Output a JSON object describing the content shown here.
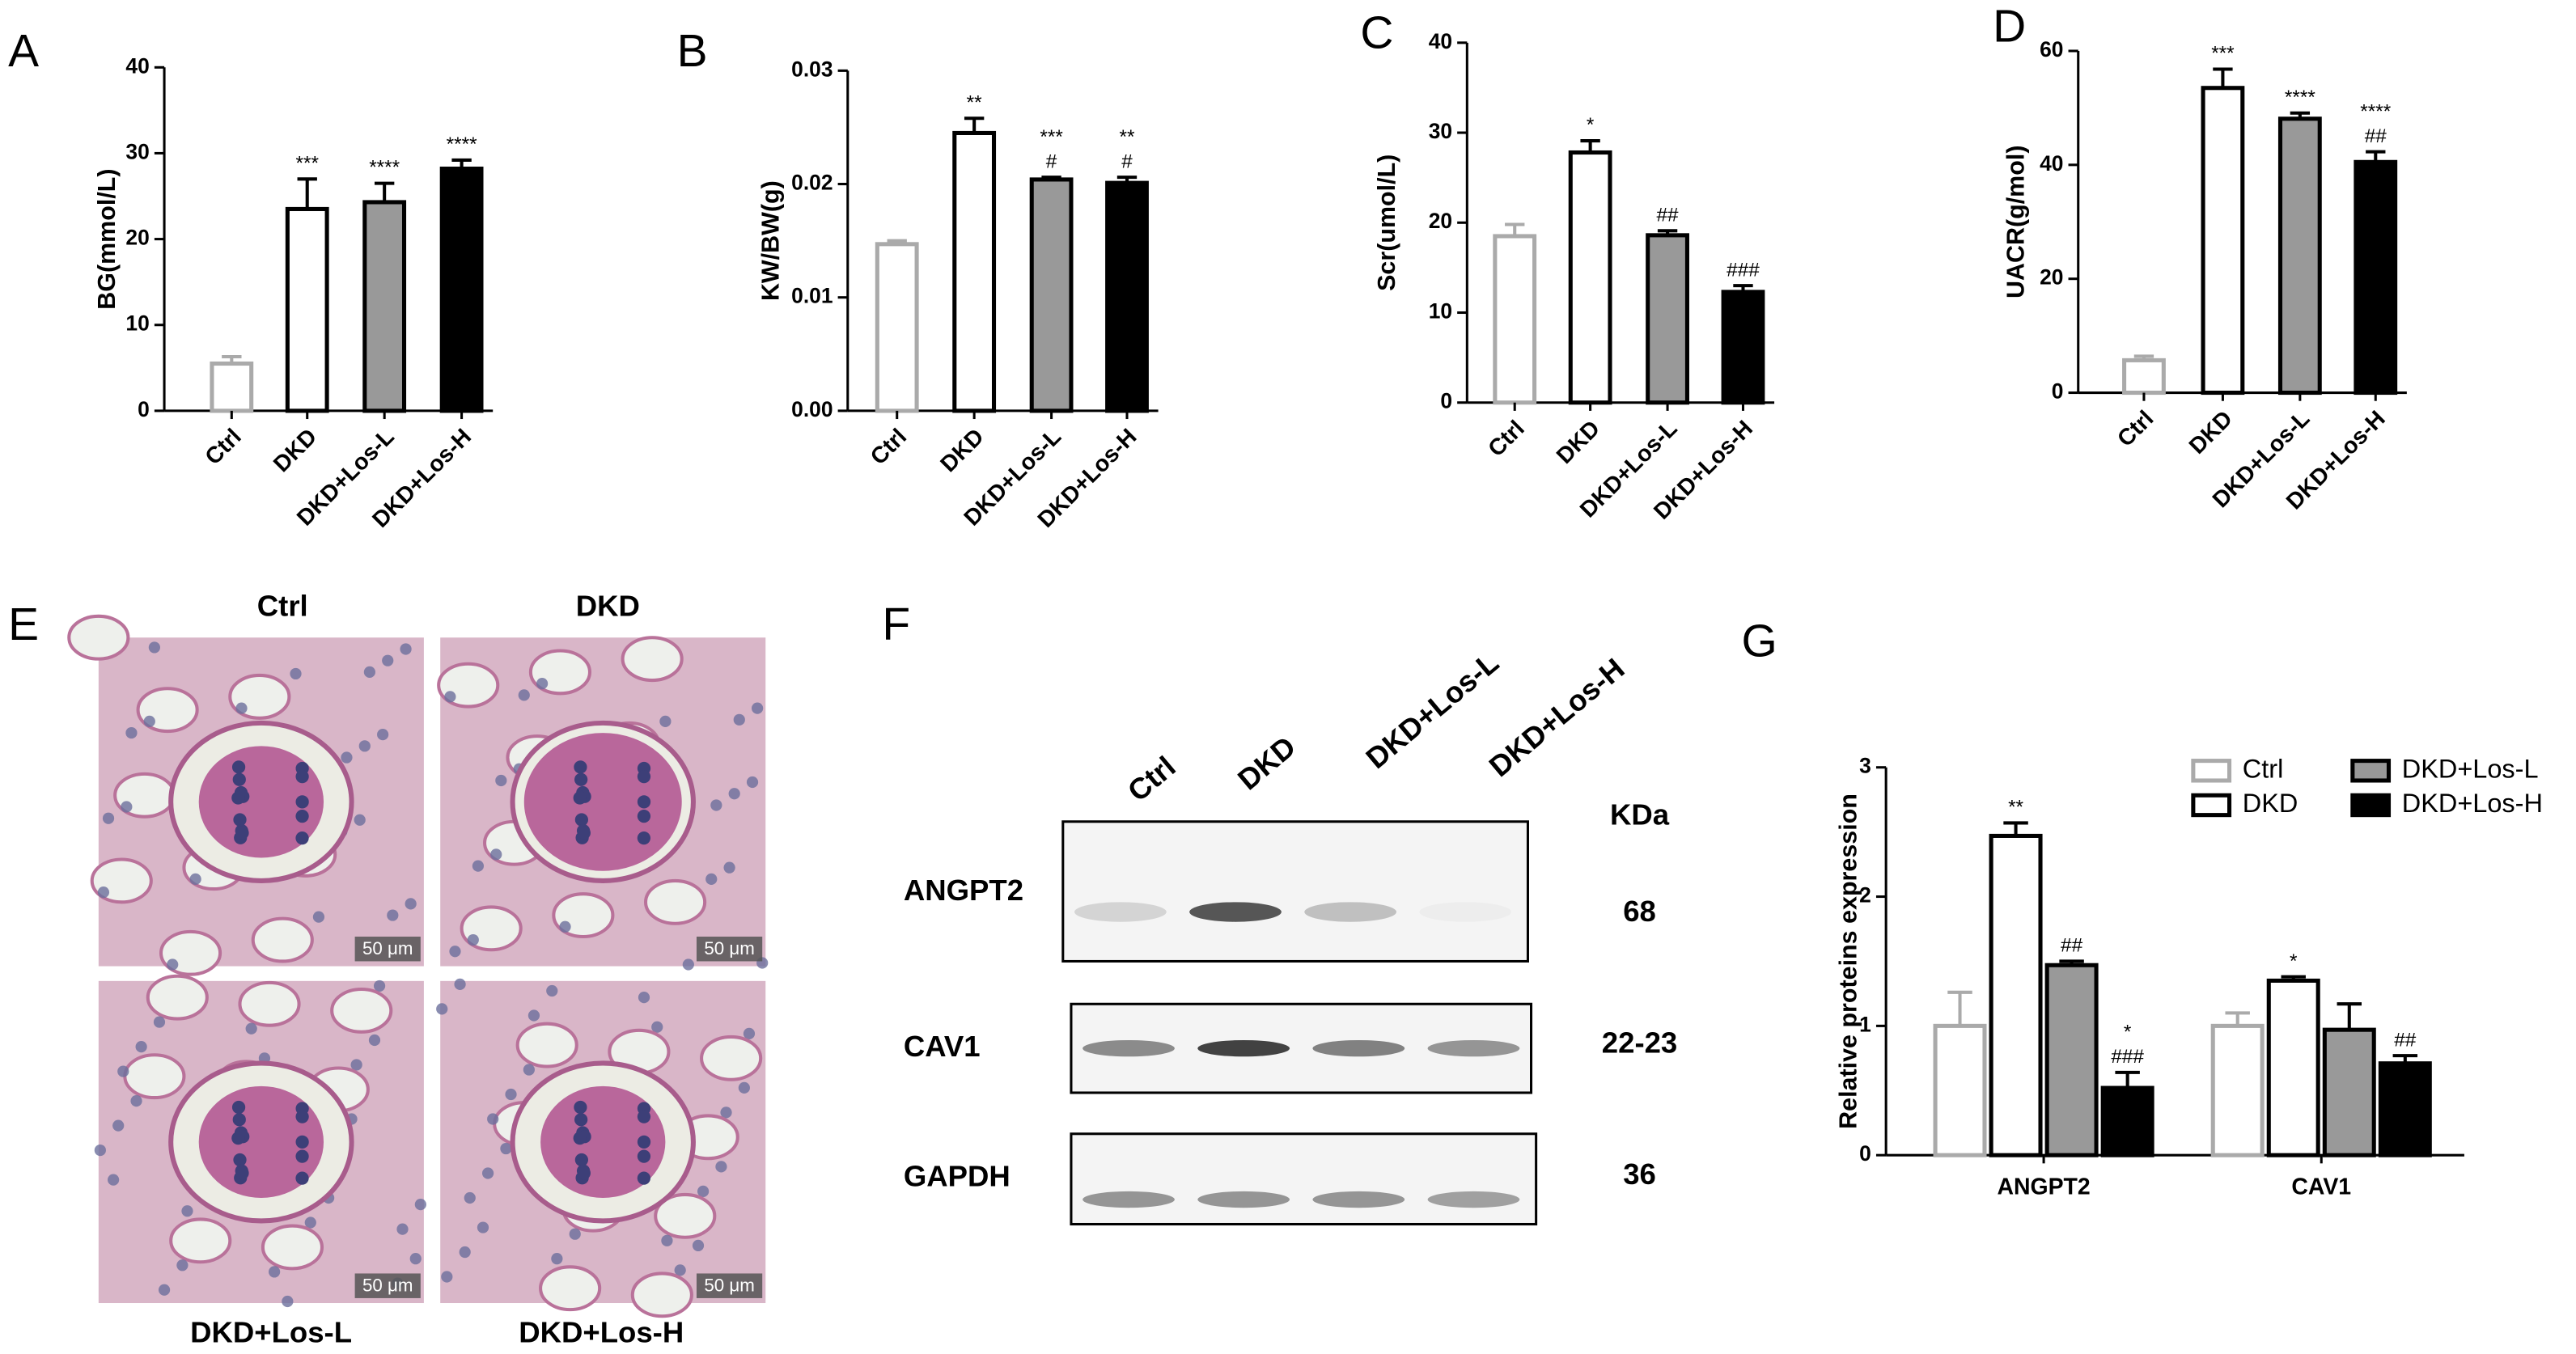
{
  "chart_data": [
    {
      "type": "bar",
      "panel_label": "A",
      "ylabel": "BG(mmol/L)",
      "categories": [
        "Ctrl",
        "DKD",
        "DKD+Los-L",
        "DKD+Los-H"
      ],
      "values": [
        5.5,
        23.5,
        24.3,
        28.2
      ],
      "errors": [
        0.8,
        3.5,
        2.2,
        1.0
      ],
      "fills": [
        "#ffffff",
        "#ffffff",
        "#999999",
        "#000000"
      ],
      "strokes": [
        "#aaaaaa",
        "#000000",
        "#000000",
        "#000000"
      ],
      "annotations": [
        null,
        [
          "***"
        ],
        [
          "****"
        ],
        [
          "****"
        ]
      ],
      "ylim": [
        0,
        40
      ],
      "yticks": [
        0,
        10,
        20,
        30,
        40
      ]
    },
    {
      "type": "bar",
      "panel_label": "B",
      "ylabel": "KW/BW(g)",
      "categories": [
        "Ctrl",
        "DKD",
        "DKD+Los-L",
        "DKD+Los-H"
      ],
      "values": [
        0.0147,
        0.0245,
        0.0204,
        0.0201
      ],
      "errors": [
        0.0003,
        0.0013,
        0.0002,
        0.0005
      ],
      "fills": [
        "#ffffff",
        "#ffffff",
        "#999999",
        "#000000"
      ],
      "strokes": [
        "#aaaaaa",
        "#000000",
        "#000000",
        "#000000"
      ],
      "annotations": [
        null,
        [
          "**"
        ],
        [
          "***",
          "#"
        ],
        [
          "**",
          "#"
        ]
      ],
      "ylim": [
        0,
        0.03
      ],
      "yticks": [
        {
          "value": 0,
          "label": "0.00"
        },
        0.01,
        0.02,
        0.03
      ]
    },
    {
      "type": "bar",
      "panel_label": "C",
      "ylabel": "Scr(umol/L)",
      "categories": [
        "Ctrl",
        "DKD",
        "DKD+Los-L",
        "DKD+Los-H"
      ],
      "values": [
        18.5,
        27.8,
        18.6,
        12.3
      ],
      "errors": [
        1.3,
        1.3,
        0.5,
        0.7
      ],
      "fills": [
        "#ffffff",
        "#ffffff",
        "#999999",
        "#000000"
      ],
      "strokes": [
        "#aaaaaa",
        "#000000",
        "#000000",
        "#000000"
      ],
      "annotations": [
        null,
        [
          "*"
        ],
        [
          "##"
        ],
        [
          "###"
        ]
      ],
      "ylim": [
        0,
        40
      ],
      "yticks": [
        0,
        10,
        20,
        30,
        40
      ]
    },
    {
      "type": "bar",
      "panel_label": "D",
      "ylabel": "UACR(g/mol)",
      "categories": [
        "Ctrl",
        "DKD",
        "DKD+Los-L",
        "DKD+Los-H"
      ],
      "values": [
        5.7,
        53.5,
        48.1,
        40.5
      ],
      "errors": [
        0.7,
        3.3,
        1.0,
        1.8
      ],
      "fills": [
        "#ffffff",
        "#ffffff",
        "#999999",
        "#000000"
      ],
      "strokes": [
        "#aaaaaa",
        "#000000",
        "#000000",
        "#000000"
      ],
      "annotations": [
        null,
        [
          "***"
        ],
        [
          "****"
        ],
        [
          "****",
          "##"
        ]
      ],
      "ylim": [
        0,
        60
      ],
      "yticks": [
        0,
        20,
        40,
        60
      ]
    },
    {
      "type": "grouped-bar",
      "panel_label": "G",
      "ylabel": "Relative proteins expression",
      "categories": [
        "ANGPT2",
        "CAV1"
      ],
      "series": [
        {
          "name": "Ctrl",
          "fill": "#ffffff",
          "stroke": "#aaaaaa",
          "values": [
            1.0,
            1.0
          ],
          "errors": [
            0.26,
            0.1
          ],
          "annotations": [
            null,
            null
          ]
        },
        {
          "name": "DKD",
          "fill": "#ffffff",
          "stroke": "#000000",
          "values": [
            2.47,
            1.35
          ],
          "errors": [
            0.1,
            0.03
          ],
          "annotations": [
            [
              "**"
            ],
            [
              "*"
            ]
          ]
        },
        {
          "name": "DKD+Los-L",
          "fill": "#999999",
          "stroke": "#000000",
          "values": [
            1.47,
            0.97
          ],
          "errors": [
            0.03,
            0.2
          ],
          "annotations": [
            [
              "##"
            ],
            null
          ]
        },
        {
          "name": "DKD+Los-H",
          "fill": "#000000",
          "stroke": "#000000",
          "values": [
            0.52,
            0.71
          ],
          "errors": [
            0.12,
            0.06
          ],
          "annotations": [
            [
              "*",
              "###"
            ],
            [
              "##"
            ]
          ]
        }
      ],
      "ylim": [
        0,
        3
      ],
      "yticks": [
        0,
        1,
        2,
        3
      ]
    }
  ],
  "histology": {
    "panel_label": "E",
    "images": [
      {
        "label": "Ctrl",
        "scale_bar": "50 μm"
      },
      {
        "label": "DKD",
        "scale_bar": "50 μm"
      },
      {
        "label": "DKD+Los-L",
        "scale_bar": "50 μm"
      },
      {
        "label": "DKD+Los-H",
        "scale_bar": "50 μm"
      }
    ]
  },
  "western_blot": {
    "panel_label": "F",
    "unit_header": "KDa",
    "lanes": [
      "Ctrl",
      "DKD",
      "DKD+Los-L",
      "DKD+Los-H"
    ],
    "rows": [
      {
        "protein": "ANGPT2",
        "size": "68"
      },
      {
        "protein": "CAV1",
        "size": "22-23"
      },
      {
        "protein": "GAPDH",
        "size": "36"
      }
    ]
  }
}
